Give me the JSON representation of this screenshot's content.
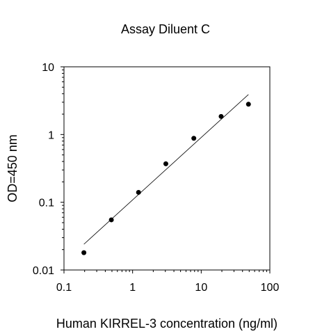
{
  "chart_data": {
    "type": "scatter",
    "title": "Assay Diluent C",
    "xlabel": "Human KIRREL-3 concentration (ng/ml)",
    "ylabel": "OD=450 nm",
    "xscale": "log",
    "yscale": "log",
    "xlim": [
      0.1,
      100
    ],
    "ylim": [
      0.01,
      10
    ],
    "xticks": [
      0.1,
      1,
      10,
      100
    ],
    "xtick_labels": [
      "0.1",
      "1",
      "10",
      "100"
    ],
    "yticks": [
      0.01,
      0.1,
      1,
      10
    ],
    "ytick_labels": [
      "0.01",
      "0.1",
      "1",
      "10"
    ],
    "grid": false,
    "legend": "none",
    "series": [
      {
        "x": [
          0.195,
          0.49,
          1.22,
          3.05,
          7.8,
          19.5,
          48.8
        ],
        "y": [
          0.018,
          0.055,
          0.14,
          0.37,
          0.88,
          1.85,
          2.8
        ]
      }
    ],
    "fit_line": {
      "x": [
        0.195,
        48.8
      ],
      "y": [
        0.024,
        3.9
      ]
    },
    "colors": {
      "points": "#000000",
      "line": "#000000",
      "axis": "#000000"
    }
  }
}
